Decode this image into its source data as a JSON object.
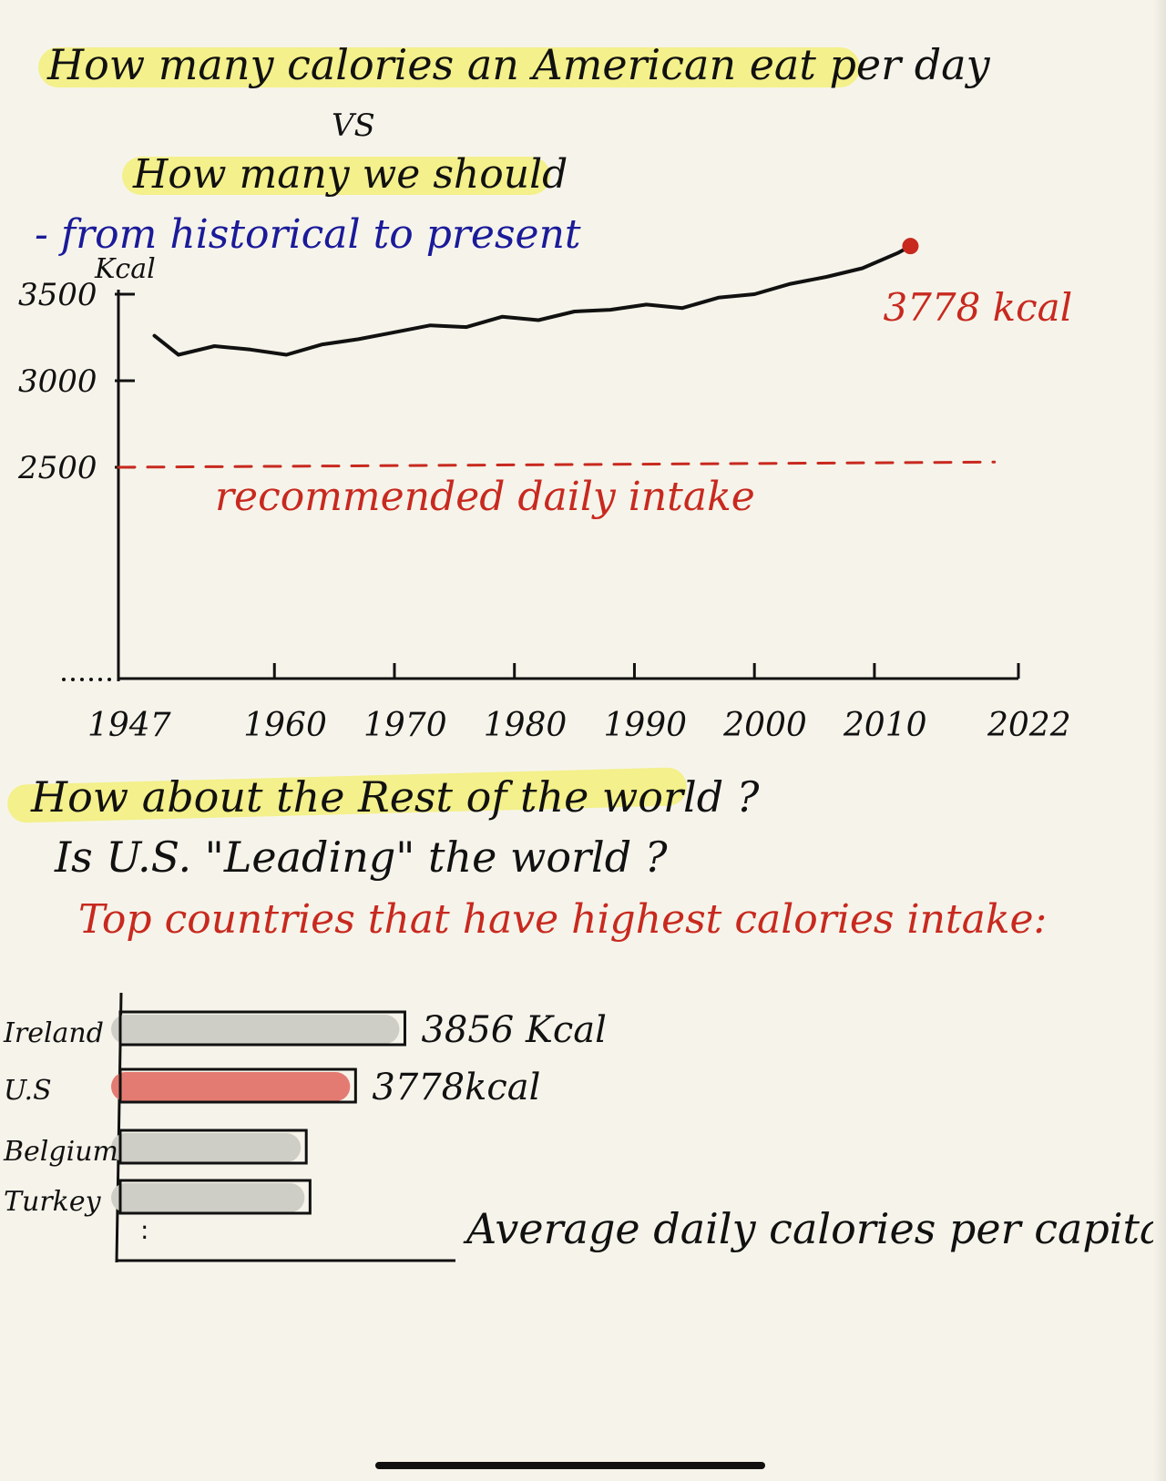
{
  "title_line1": "How many calories an American eat per day",
  "title_vs": "VS",
  "title_line2": "How many we should",
  "subtitle": "- from historical to present",
  "chart_data": [
    {
      "type": "line",
      "ylabel": "Kcal",
      "y_tick_labels": [
        "3500",
        "3000",
        "2500"
      ],
      "x_tick_labels": [
        "1947",
        "1960",
        "1970",
        "1980",
        "1990",
        "2000",
        "2010",
        "2022"
      ],
      "xlim": [
        1947,
        2022
      ],
      "ylim": [
        2000,
        3780
      ],
      "series": [
        {
          "name": "",
          "color": "#111111",
          "x": [
            1950,
            1952,
            1955,
            1958,
            1961,
            1964,
            1967,
            1970,
            1973,
            1976,
            1979,
            1982,
            1985,
            1988,
            1991,
            1994,
            1997,
            2000,
            2003,
            2006,
            2009,
            2012,
            2013
          ],
          "y": [
            3260,
            3150,
            3200,
            3180,
            3150,
            3210,
            3240,
            3280,
            3320,
            3310,
            3370,
            3350,
            3400,
            3410,
            3440,
            3420,
            3480,
            3500,
            3560,
            3600,
            3650,
            3740,
            3778
          ],
          "end_label": "3778 kcal"
        },
        {
          "name": "recommended daily intake",
          "color": "#c8291f",
          "dashed": true,
          "x": [
            1947,
            2020
          ],
          "y": [
            2500,
            2530
          ]
        }
      ]
    },
    {
      "type": "bar",
      "orientation": "horizontal",
      "title": "Top countries that have highest calories intake:",
      "xlabel": "Average daily calories per capita",
      "categories": [
        "Ireland",
        "U.S",
        "Belgium",
        "Turkey"
      ],
      "values": [
        3856,
        3778,
        3700,
        3706
      ],
      "value_labels": [
        "3856 Kcal",
        "3778kcal",
        "",
        ""
      ],
      "colors": [
        "#cfcec6",
        "#e47b72",
        "#cfcec6",
        "#cfcec6"
      ],
      "xlim": [
        3400,
        3900
      ]
    }
  ],
  "section2_q1": "How about the Rest of the world ?",
  "section2_q2": "Is U.S. \"Leading\" the world ?"
}
